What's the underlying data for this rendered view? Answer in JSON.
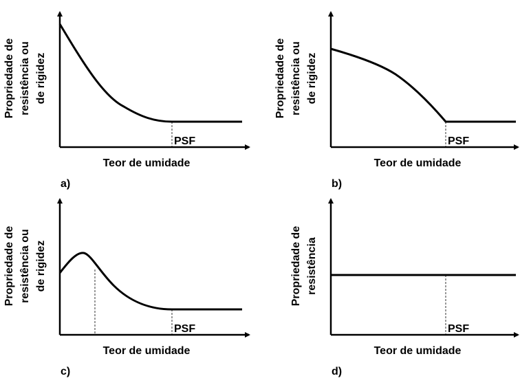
{
  "panels": [
    {
      "label": "a)",
      "y_label": [
        "Propriedade de",
        "resistência ou",
        "de rigidez"
      ],
      "x_label": "Teor de umidade",
      "marker": "PSF"
    },
    {
      "label": "b)",
      "y_label": [
        "Propriedade de",
        "resistência ou",
        "de rigidez"
      ],
      "x_label": "Teor de umidade",
      "marker": "PSF"
    },
    {
      "label": "c)",
      "y_label": [
        "Propriedade de",
        "resistência ou",
        "de rigidez"
      ],
      "x_label": "Teor de umidade",
      "marker": "PSF"
    },
    {
      "label": "d)",
      "y_label": [
        "Propriedade de",
        "resistência"
      ],
      "x_label": "Teor de umidade",
      "marker": "PSF"
    }
  ]
}
